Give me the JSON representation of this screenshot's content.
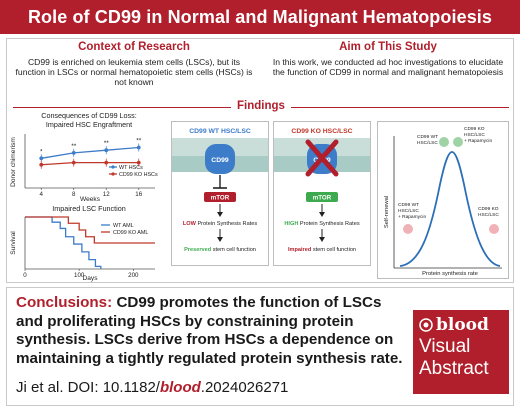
{
  "title": "Role of CD99 in Normal and Malignant Hematopoiesis",
  "context": {
    "heading": "Context of Research",
    "text": "CD99 is enriched on leukemia stem cells (LSCs), but its function in LSCs or normal hematopoietic stem cells (HSCs) is not known"
  },
  "aim": {
    "heading": "Aim of This Study",
    "text": "In this work, we conducted ad hoc investigations to elucidate the function of CD99 in normal and malignant hematopoiesis"
  },
  "findings_heading": "Findings",
  "chart_data": [
    {
      "type": "line",
      "title": "Consequences of CD99 Loss: Impaired HSC Engraftment",
      "xlabel": "Weeks",
      "ylabel": "Donor chimerism",
      "x": [
        4,
        8,
        12,
        16
      ],
      "xticks": [
        "4",
        "8",
        "12",
        "16"
      ],
      "xlim": [
        2,
        18
      ],
      "ylim": [
        0,
        100
      ],
      "series": [
        {
          "name": "WT HSCs",
          "values": [
            55,
            65,
            70,
            75
          ],
          "color": "#3d7cc9"
        },
        {
          "name": "CD99 KO HSCs",
          "values": [
            43,
            47,
            47,
            47
          ],
          "color": "#c0392b"
        }
      ],
      "significance": [
        "*",
        "**",
        "**",
        "**"
      ],
      "legend": "bottom-right"
    },
    {
      "type": "line",
      "title": "Impaired LSC Function",
      "xlabel": "Days",
      "ylabel": "Survival",
      "xticks": [
        "0",
        "100",
        "200"
      ],
      "xlim": [
        0,
        240
      ],
      "ylim": [
        0,
        100
      ],
      "series": [
        {
          "name": "WT AML",
          "color": "#3d7cc9",
          "steps": [
            [
              0,
              100
            ],
            [
              50,
              100
            ],
            [
              50,
              90
            ],
            [
              65,
              90
            ],
            [
              65,
              78
            ],
            [
              75,
              78
            ],
            [
              75,
              62
            ],
            [
              90,
              62
            ],
            [
              90,
              48
            ],
            [
              105,
              48
            ],
            [
              105,
              33
            ],
            [
              118,
              33
            ],
            [
              118,
              18
            ],
            [
              130,
              18
            ],
            [
              130,
              5
            ],
            [
              140,
              5
            ],
            [
              140,
              0
            ]
          ]
        },
        {
          "name": "CD99 KO AML",
          "color": "#c0392b",
          "steps": [
            [
              0,
              100
            ],
            [
              80,
              100
            ],
            [
              80,
              88
            ],
            [
              100,
              88
            ],
            [
              100,
              75
            ],
            [
              112,
              75
            ],
            [
              112,
              62
            ],
            [
              128,
              62
            ],
            [
              128,
              50
            ],
            [
              240,
              50
            ]
          ]
        }
      ],
      "legend": "top-right"
    },
    {
      "type": "line",
      "xlabel": "Protein synthesis rate",
      "ylabel": "Self-renewal",
      "annotations": [
        {
          "text": "CD99 WT HSC/LSC",
          "position": "peak-left"
        },
        {
          "text": "CD99 KO HSC/LSC + Rapamycin",
          "position": "peak-right"
        },
        {
          "text": "CD99 WT HSC/LSC + Rapamycin",
          "position": "left"
        },
        {
          "text": "CD99 KO HSC/LSC",
          "position": "right"
        }
      ]
    }
  ],
  "mechanism": {
    "wt": {
      "title": "CD99 WT HSC/LSC",
      "receptor": "CD99",
      "target": "mTOR",
      "level": "LOW",
      "rate_text": "Protein Synthesis Rates",
      "effect": "Preserved",
      "effect_rest": "stem cell function"
    },
    "ko": {
      "title": "CD99 KO HSC/LSC",
      "receptor": "CD99",
      "target": "mTOR",
      "level": "HIGH",
      "rate_text": "Protein Synthesis Rates",
      "effect": "Impaired",
      "effect_rest": "stem cell function"
    }
  },
  "conclusion": {
    "label": "Conclusions:",
    "text": "CD99 promotes the function of LSCs and proliferating HSCs by constraining protein synthesis. LSCs derive from HSCs a dependence on maintaining a tightly regulated protein synthesis rate."
  },
  "citation": {
    "prefix": "Ji et al. DOI: 10.1182/",
    "journal": "blood",
    "suffix": ".2024026271"
  },
  "logo": {
    "brand": "blood",
    "line1": "Visual",
    "line2": "Abstract"
  },
  "colors": {
    "accent": "#b01f2b",
    "blue": "#3d7cc9",
    "green": "#3daa4f",
    "curve": "#2c6fb7"
  }
}
